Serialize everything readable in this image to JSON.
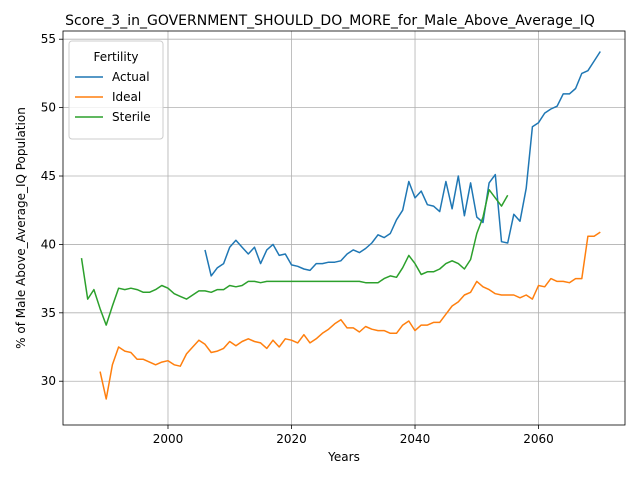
{
  "chart_data": {
    "type": "line",
    "title": "Score_3_in_GOVERNMENT_SHOULD_DO_MORE_for_Male_Above_Average_IQ",
    "xlabel": "Years",
    "ylabel": "% of Male Above_Average_IQ Population",
    "xlim": [
      1983,
      2074
    ],
    "ylim": [
      26.8,
      55.6
    ],
    "xticks": [
      2000,
      2020,
      2040,
      2060
    ],
    "yticks": [
      30,
      35,
      40,
      45,
      50,
      55
    ],
    "grid": true,
    "legend": {
      "title": "Fertility",
      "position": "upper-left"
    },
    "series": [
      {
        "name": "Actual",
        "color": "#1f77b4",
        "x": [
          2006,
          2007,
          2008,
          2009,
          2010,
          2011,
          2012,
          2013,
          2014,
          2015,
          2016,
          2017,
          2018,
          2019,
          2020,
          2021,
          2022,
          2023,
          2024,
          2025,
          2026,
          2027,
          2028,
          2029,
          2030,
          2031,
          2032,
          2033,
          2034,
          2035,
          2036,
          2037,
          2038,
          2039,
          2040,
          2041,
          2042,
          2043,
          2044,
          2045,
          2046,
          2047,
          2048,
          2049,
          2050,
          2051,
          2052,
          2053,
          2054,
          2055,
          2056,
          2057,
          2058,
          2059,
          2060,
          2061,
          2062,
          2063,
          2064,
          2065,
          2066,
          2067,
          2068,
          2069,
          2070
        ],
        "y": [
          39.6,
          37.7,
          38.3,
          38.6,
          39.8,
          40.3,
          39.8,
          39.3,
          39.8,
          38.6,
          39.6,
          40.0,
          39.2,
          39.3,
          38.5,
          38.4,
          38.2,
          38.1,
          38.6,
          38.6,
          38.7,
          38.7,
          38.8,
          39.3,
          39.6,
          39.4,
          39.7,
          40.1,
          40.7,
          40.5,
          40.8,
          41.8,
          42.5,
          44.6,
          43.4,
          43.9,
          42.9,
          42.8,
          42.4,
          44.6,
          42.6,
          45.0,
          42.1,
          44.5,
          42.0,
          41.6,
          44.5,
          45.1,
          40.2,
          40.1,
          42.2,
          41.7,
          44.1,
          48.6,
          48.9,
          49.6,
          49.9,
          50.1,
          51.0,
          51.0,
          51.4,
          52.5,
          52.7,
          53.4,
          54.1
        ]
      },
      {
        "name": "Ideal",
        "color": "#ff7f0e",
        "x": [
          1989,
          1990,
          1991,
          1992,
          1993,
          1994,
          1995,
          1996,
          1997,
          1998,
          1999,
          2000,
          2001,
          2002,
          2003,
          2004,
          2005,
          2006,
          2007,
          2008,
          2009,
          2010,
          2011,
          2012,
          2013,
          2014,
          2015,
          2016,
          2017,
          2018,
          2019,
          2020,
          2021,
          2022,
          2023,
          2024,
          2025,
          2026,
          2027,
          2028,
          2029,
          2030,
          2031,
          2032,
          2033,
          2034,
          2035,
          2036,
          2037,
          2038,
          2039,
          2040,
          2041,
          2042,
          2043,
          2044,
          2045,
          2046,
          2047,
          2048,
          2049,
          2050,
          2051,
          2052,
          2053,
          2054,
          2055,
          2056,
          2057,
          2058,
          2059,
          2060,
          2061,
          2062,
          2063,
          2064,
          2065,
          2066,
          2067,
          2068,
          2069,
          2070
        ],
        "y": [
          30.7,
          28.7,
          31.2,
          32.5,
          32.2,
          32.1,
          31.6,
          31.6,
          31.4,
          31.2,
          31.4,
          31.5,
          31.2,
          31.1,
          32.0,
          32.5,
          33.0,
          32.7,
          32.1,
          32.2,
          32.4,
          32.9,
          32.6,
          32.9,
          33.1,
          32.9,
          32.8,
          32.4,
          33.0,
          32.5,
          33.1,
          33.0,
          32.8,
          33.4,
          32.8,
          33.1,
          33.5,
          33.8,
          34.2,
          34.5,
          33.9,
          33.9,
          33.6,
          34.0,
          33.8,
          33.7,
          33.7,
          33.5,
          33.5,
          34.1,
          34.4,
          33.7,
          34.1,
          34.1,
          34.3,
          34.3,
          34.9,
          35.5,
          35.8,
          36.3,
          36.5,
          37.3,
          36.9,
          36.7,
          36.4,
          36.3,
          36.3,
          36.3,
          36.1,
          36.3,
          36.0,
          37.0,
          36.9,
          37.5,
          37.3,
          37.3,
          37.2,
          37.5,
          37.5,
          40.6,
          40.6,
          40.9
        ]
      },
      {
        "name": "Sterile",
        "color": "#2ca02c",
        "x": [
          1986,
          1987,
          1988,
          1989,
          1990,
          1991,
          1992,
          1993,
          1994,
          1995,
          1996,
          1997,
          1998,
          1999,
          2000,
          2001,
          2002,
          2003,
          2004,
          2005,
          2006,
          2007,
          2008,
          2009,
          2010,
          2011,
          2012,
          2013,
          2014,
          2015,
          2016,
          2017,
          2018,
          2019,
          2020,
          2021,
          2022,
          2023,
          2024,
          2025,
          2026,
          2027,
          2028,
          2029,
          2030,
          2031,
          2032,
          2033,
          2034,
          2035,
          2036,
          2037,
          2038,
          2039,
          2040,
          2041,
          2042,
          2043,
          2044,
          2045,
          2046,
          2047,
          2048,
          2049,
          2050,
          2051,
          2052,
          2053,
          2054,
          2055
        ],
        "y": [
          39.0,
          36.0,
          36.7,
          35.3,
          34.1,
          35.5,
          36.8,
          36.7,
          36.8,
          36.7,
          36.5,
          36.5,
          36.7,
          37.0,
          36.8,
          36.4,
          36.2,
          36.0,
          36.3,
          36.6,
          36.6,
          36.5,
          36.7,
          36.7,
          37.0,
          36.9,
          37.0,
          37.3,
          37.3,
          37.2,
          37.3,
          37.3,
          37.3,
          37.3,
          37.3,
          37.3,
          37.3,
          37.3,
          37.3,
          37.3,
          37.3,
          37.3,
          37.3,
          37.3,
          37.3,
          37.3,
          37.2,
          37.2,
          37.2,
          37.5,
          37.7,
          37.6,
          38.3,
          39.2,
          38.6,
          37.8,
          38.0,
          38.0,
          38.2,
          38.6,
          38.8,
          38.6,
          38.2,
          38.9,
          40.8,
          42.0,
          44.0,
          43.4,
          42.8,
          43.6
        ]
      }
    ]
  }
}
